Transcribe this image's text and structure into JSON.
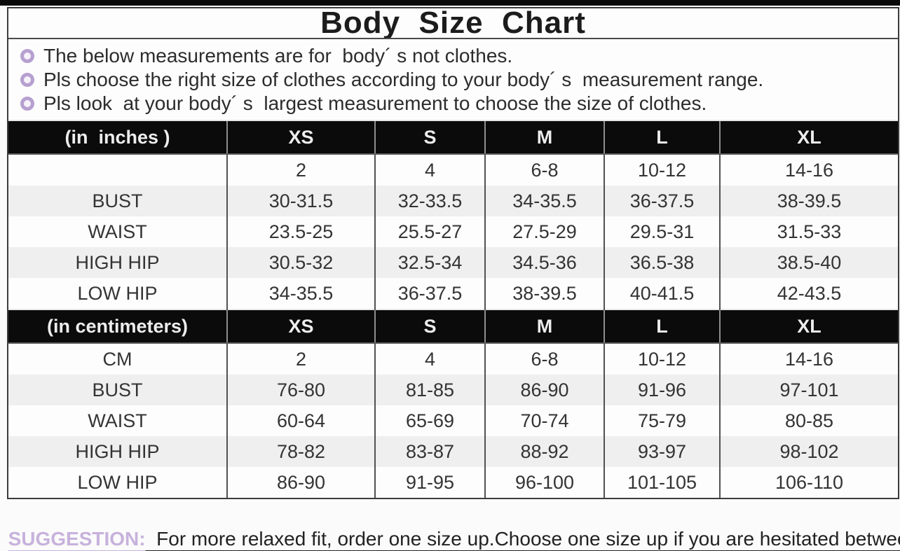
{
  "title": "Body  Size  Chart",
  "notes": [
    "The below measurements are for  body´ s not clothes.",
    "Pls choose the right size of clothes according to your body´ s  measurement range.",
    "Pls look  at your body´ s  largest measurement to choose the size of clothes."
  ],
  "table": {
    "sections": [
      {
        "header": {
          "label": "(in  inches )",
          "sizes": [
            "XS",
            "S",
            "M",
            "L",
            "XL"
          ]
        },
        "rows": [
          {
            "label": "",
            "values": [
              "2",
              "4",
              "6-8",
              "10-12",
              "14-16"
            ]
          },
          {
            "label": "BUST",
            "values": [
              "30-31.5",
              "32-33.5",
              "34-35.5",
              "36-37.5",
              "38-39.5"
            ]
          },
          {
            "label": "WAIST",
            "values": [
              "23.5-25",
              "25.5-27",
              "27.5-29",
              "29.5-31",
              "31.5-33"
            ]
          },
          {
            "label": "HIGH HIP",
            "values": [
              "30.5-32",
              "32.5-34",
              "34.5-36",
              "36.5-38",
              "38.5-40"
            ]
          },
          {
            "label": "LOW HIP",
            "values": [
              "34-35.5",
              "36-37.5",
              "38-39.5",
              "40-41.5",
              "42-43.5"
            ]
          }
        ]
      },
      {
        "header": {
          "label": "(in centimeters)",
          "sizes": [
            "XS",
            "S",
            "M",
            "L",
            "XL"
          ]
        },
        "rows": [
          {
            "label": "CM",
            "values": [
              "2",
              "4",
              "6-8",
              "10-12",
              "14-16"
            ]
          },
          {
            "label": "BUST",
            "values": [
              "76-80",
              "81-85",
              "86-90",
              "91-96",
              "97-101"
            ]
          },
          {
            "label": "WAIST",
            "values": [
              "60-64",
              "65-69",
              "70-74",
              "75-79",
              "80-85"
            ]
          },
          {
            "label": "HIGH HIP",
            "values": [
              "78-82",
              "83-87",
              "88-92",
              "93-97",
              "98-102"
            ]
          },
          {
            "label": "LOW HIP",
            "values": [
              "86-90",
              "91-95",
              "96-100",
              "101-105",
              "106-110"
            ]
          }
        ]
      }
    ]
  },
  "suggestion": {
    "label": "SUGGESTION:",
    "text": "  For more relaxed fit, order one size up.Choose one size up if you are hesitated between two sizes"
  },
  "colors": {
    "header_bg": "#0b0b0b",
    "header_text": "#ededed",
    "shaded_row": "#efeff0",
    "bullet_ring": "#b6a0d0",
    "suggestion_label": "#c7b2dc",
    "border": "#4a4a4a"
  }
}
